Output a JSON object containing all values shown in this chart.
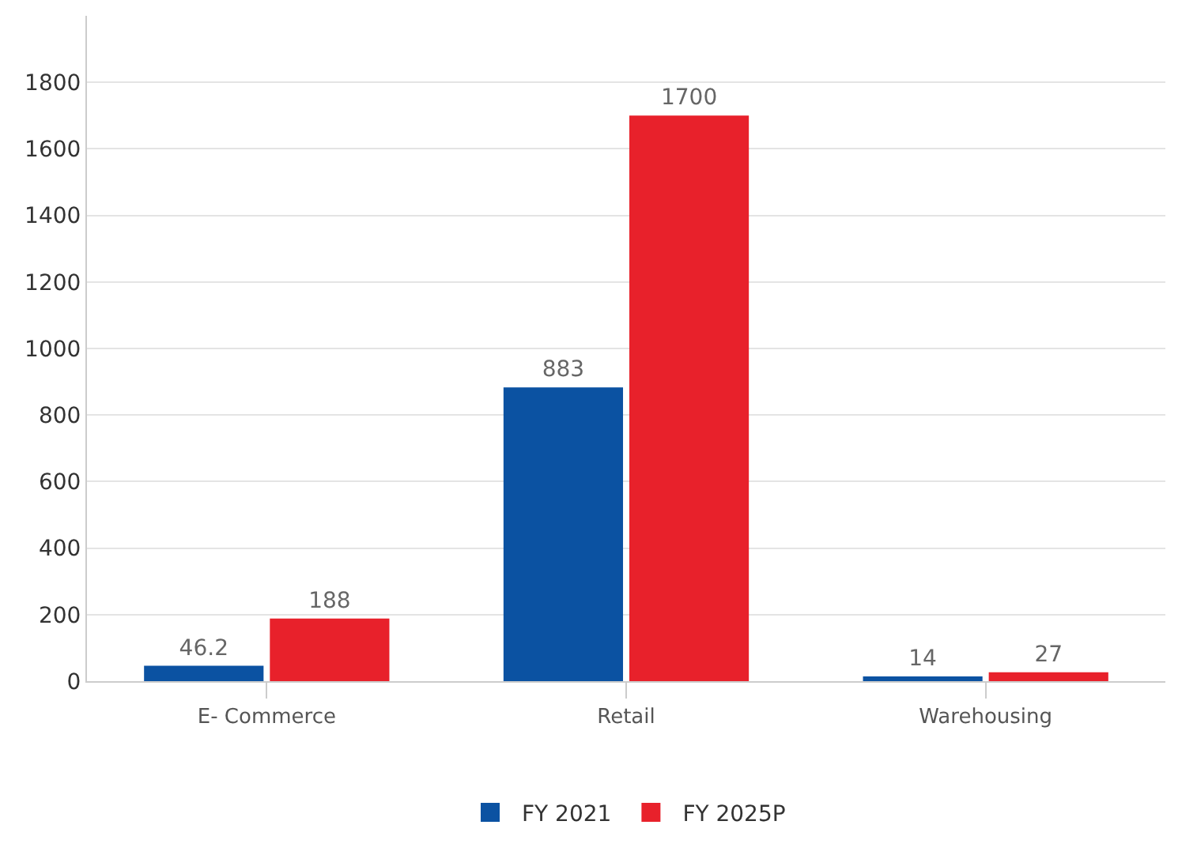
{
  "chart_data": {
    "type": "bar",
    "categories": [
      "E- Commerce",
      "Retail",
      "Warehousing"
    ],
    "series": [
      {
        "name": "FY 2021",
        "color": "#0b52a2",
        "values": [
          46.2,
          883,
          14
        ]
      },
      {
        "name": "FY 2025P",
        "color": "#e8212b",
        "values": [
          188,
          1700,
          27
        ]
      }
    ],
    "ylim": [
      0,
      2000
    ],
    "yticks": [
      0,
      200,
      400,
      600,
      800,
      1000,
      1200,
      1400,
      1600,
      1800
    ],
    "grid": "y",
    "legend": "bottom",
    "data_labels": true
  }
}
